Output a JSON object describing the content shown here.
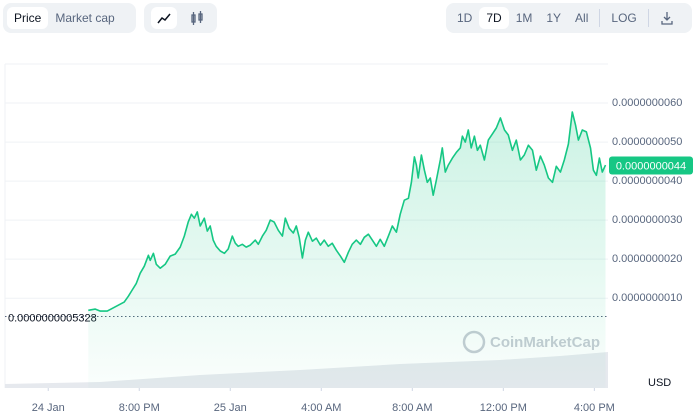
{
  "toolbar": {
    "tabs": [
      "Price",
      "Market cap"
    ],
    "ranges": [
      "1D",
      "7D",
      "1M",
      "1Y",
      "All"
    ],
    "scale": "LOG"
  },
  "chart_data": {
    "type": "line",
    "color": "#16c784",
    "currency": "USD",
    "watermark": "CoinMarketCap",
    "xlim": [
      14.1,
      40.6
    ],
    "xticks": [
      {
        "value": 16,
        "label": "24 Jan"
      },
      {
        "value": 20,
        "label": "8:00 PM"
      },
      {
        "value": 24,
        "label": "25 Jan"
      },
      {
        "value": 28,
        "label": "4:00 AM"
      },
      {
        "value": 32,
        "label": "8:00 AM"
      },
      {
        "value": 36,
        "label": "12:00 PM"
      },
      {
        "value": 40,
        "label": "4:00 PM"
      }
    ],
    "ylim": [
      -1.3e-09,
      7e-09
    ],
    "yticks": [
      {
        "value": 1e-09,
        "label": "0.0000000010"
      },
      {
        "value": 2e-09,
        "label": "0.0000000020"
      },
      {
        "value": 3e-09,
        "label": "0.0000000030"
      },
      {
        "value": 4e-09,
        "label": "0.0000000040"
      },
      {
        "value": 5e-09,
        "label": "0.0000000050"
      },
      {
        "value": 6e-09,
        "label": "0.0000000060"
      }
    ],
    "grid": true,
    "baseline": {
      "value": 5.328e-10,
      "label": "0.0000000005328"
    },
    "current_price": {
      "value": 4.4e-09,
      "label": "0.0000000044"
    },
    "x": [
      17.76,
      18.07,
      18.29,
      18.59,
      18.81,
      19.08,
      19.34,
      19.52,
      19.69,
      19.87,
      20.04,
      20.22,
      20.4,
      20.48,
      20.62,
      20.75,
      20.92,
      21.14,
      21.36,
      21.58,
      21.8,
      21.98,
      22.15,
      22.29,
      22.42,
      22.55,
      22.68,
      22.86,
      22.99,
      23.12,
      23.25,
      23.38,
      23.56,
      23.74,
      23.91,
      24.09,
      24.22,
      24.35,
      24.53,
      24.7,
      24.88,
      25.1,
      25.23,
      25.41,
      25.58,
      25.76,
      25.93,
      26.11,
      26.29,
      26.42,
      26.59,
      26.77,
      26.9,
      27.03,
      27.17,
      27.3,
      27.43,
      27.61,
      27.78,
      27.96,
      28.13,
      28.31,
      28.48,
      28.66,
      28.84,
      29.01,
      29.19,
      29.36,
      29.54,
      29.72,
      29.89,
      30.07,
      30.24,
      30.42,
      30.59,
      30.77,
      30.95,
      31.12,
      31.3,
      31.47,
      31.65,
      31.83,
      31.96,
      32.09,
      32.18,
      32.26,
      32.4,
      32.53,
      32.66,
      32.79,
      32.92,
      33.06,
      33.23,
      33.32,
      33.45,
      33.58,
      33.76,
      33.94,
      34.11,
      34.2,
      34.33,
      34.46,
      34.59,
      34.73,
      34.86,
      34.99,
      35.17,
      35.34,
      35.52,
      35.69,
      35.87,
      36.05,
      36.22,
      36.4,
      36.57,
      36.75,
      36.92,
      37.1,
      37.28,
      37.45,
      37.63,
      37.8,
      37.98,
      38.16,
      38.33,
      38.51,
      38.68,
      38.86,
      39.03,
      39.17,
      39.3,
      39.47,
      39.65,
      39.83,
      39.96,
      40.09,
      40.22,
      40.35,
      40.49
    ],
    "values": [
      6.9e-10,
      7.2e-10,
      6.7e-10,
      6.7e-10,
      7.4e-10,
      8.2e-10,
      9e-10,
      1.05e-09,
      1.21e-09,
      1.38e-09,
      1.64e-09,
      1.82e-09,
      2.1e-09,
      1.97e-09,
      2.15e-09,
      1.87e-09,
      1.77e-09,
      1.87e-09,
      2.08e-09,
      2.13e-09,
      2.31e-09,
      2.59e-09,
      2.95e-09,
      3.15e-09,
      3.05e-09,
      3.21e-09,
      2.85e-09,
      3.05e-09,
      2.72e-09,
      2.85e-09,
      2.49e-09,
      2.33e-09,
      2.21e-09,
      2.15e-09,
      2.26e-09,
      2.59e-09,
      2.41e-09,
      2.33e-09,
      2.38e-09,
      2.31e-09,
      2.36e-09,
      2.49e-09,
      2.38e-09,
      2.59e-09,
      2.74e-09,
      3e-09,
      2.95e-09,
      2.74e-09,
      2.59e-09,
      3.05e-09,
      2.79e-09,
      2.67e-09,
      2.85e-09,
      2.56e-09,
      2.03e-09,
      2.49e-09,
      2.69e-09,
      2.46e-09,
      2.54e-09,
      2.36e-09,
      2.49e-09,
      2.33e-09,
      2.41e-09,
      2.23e-09,
      2.08e-09,
      1.92e-09,
      2.18e-09,
      2.38e-09,
      2.49e-09,
      2.38e-09,
      2.56e-09,
      2.64e-09,
      2.49e-09,
      2.33e-09,
      2.51e-09,
      2.33e-09,
      2.59e-09,
      2.85e-09,
      2.69e-09,
      3.15e-09,
      3.51e-09,
      3.56e-09,
      3.97e-09,
      4.62e-09,
      4.41e-09,
      4.08e-09,
      4.67e-09,
      4.28e-09,
      3.97e-09,
      4.08e-09,
      3.64e-09,
      4.03e-09,
      4.54e-09,
      4.85e-09,
      4.23e-09,
      4.41e-09,
      4.59e-09,
      4.74e-09,
      4.85e-09,
      5.15e-09,
      5e-09,
      5.31e-09,
      4.85e-09,
      5.15e-09,
      4.79e-09,
      4.92e-09,
      4.54e-09,
      5.05e-09,
      5.21e-09,
      5.36e-09,
      5.62e-09,
      5.31e-09,
      5.18e-09,
      4.79e-09,
      5.05e-09,
      4.54e-09,
      4.67e-09,
      4.92e-09,
      4.79e-09,
      4.28e-09,
      4.64e-09,
      4.41e-09,
      4.08e-09,
      3.97e-09,
      4.38e-09,
      4.23e-09,
      4.54e-09,
      4.95e-09,
      5.77e-09,
      5.44e-09,
      5.05e-09,
      5.31e-09,
      5.26e-09,
      4.85e-09,
      4.28e-09,
      4.15e-09,
      4.59e-09,
      4.23e-09,
      4.41e-09
    ]
  }
}
